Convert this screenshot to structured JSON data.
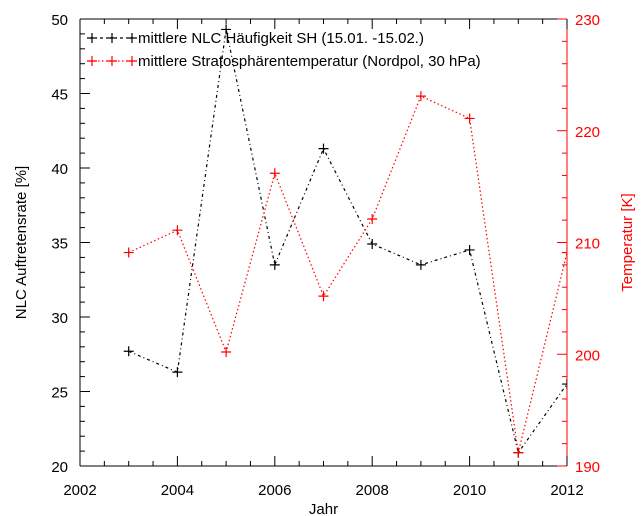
{
  "chart_data": {
    "type": "line",
    "xlabel": "Jahr",
    "xlim": [
      2002,
      2012
    ],
    "x_ticks": [
      2002,
      2004,
      2006,
      2008,
      2010,
      2012
    ],
    "left_axis": {
      "label": "NLC Auftretensrate [%]",
      "lim": [
        20,
        50
      ],
      "ticks": [
        20,
        25,
        30,
        35,
        40,
        45,
        50
      ],
      "color": "#000000"
    },
    "right_axis": {
      "label": "Temperatur [K]",
      "lim": [
        190,
        230
      ],
      "ticks": [
        190,
        200,
        210,
        220,
        230
      ],
      "color": "#ff0000"
    },
    "series": [
      {
        "name": "mittlere NLC Häufigkeit SH (15.01. -15.02.)",
        "axis": "left",
        "color": "#000000",
        "marker": "+",
        "line_style": "dash-dot",
        "x": [
          2003,
          2004,
          2005,
          2006,
          2007,
          2008,
          2009,
          2010,
          2011,
          2012
        ],
        "y": [
          27.7,
          26.3,
          49.3,
          33.5,
          41.3,
          34.9,
          33.5,
          34.5,
          20.9,
          25.5
        ]
      },
      {
        "name": "mittlere Stratosphärentemperatur (Nordpol, 30 hPa)",
        "axis": "right",
        "color": "#ff0000",
        "marker": "+",
        "line_style": "dotted",
        "x": [
          2003,
          2004,
          2005,
          2006,
          2007,
          2008,
          2009,
          2010,
          2011,
          2012
        ],
        "y": [
          209.1,
          211.1,
          200.2,
          216.2,
          205.2,
          212.1,
          223.1,
          221.1,
          191.2,
          209.1
        ]
      }
    ],
    "legend_position": "top-left",
    "grid": false
  }
}
